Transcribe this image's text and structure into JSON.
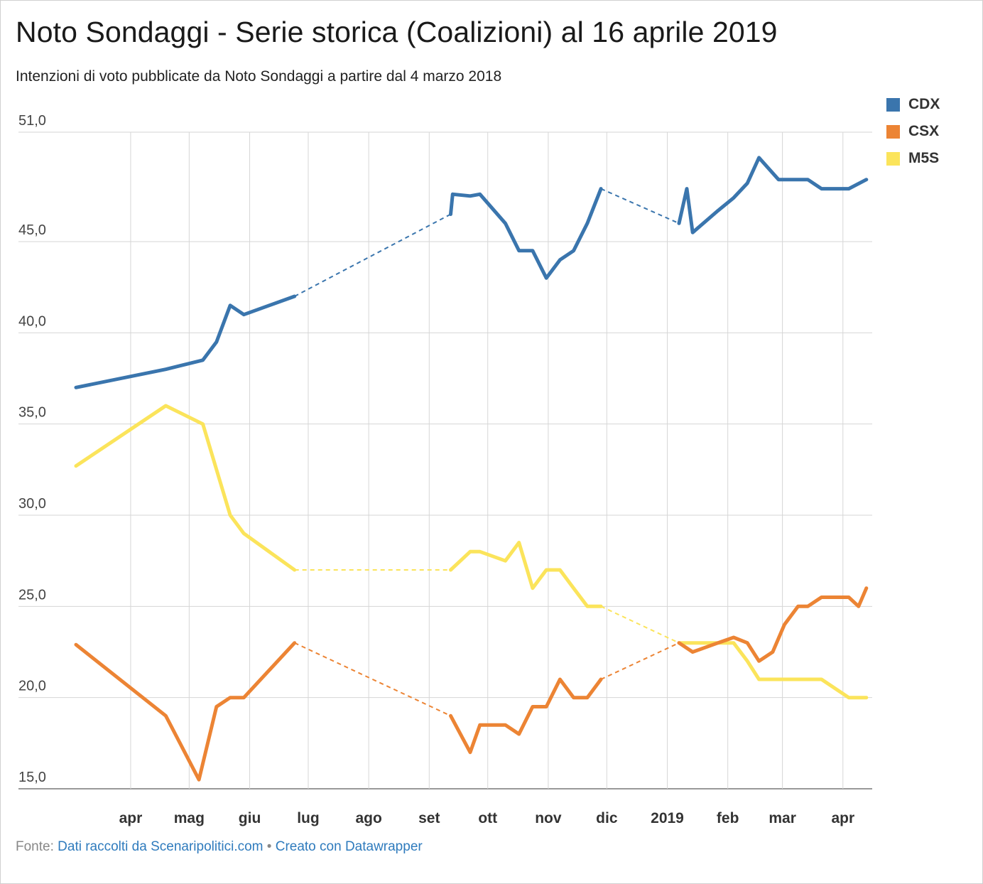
{
  "title": "Noto Sondaggi - Serie storica (Coalizioni) al 16 aprile 2019",
  "subtitle": "Intenzioni di voto pubblicate da Noto Sondaggi a partire dal 4 marzo 2018",
  "footer": {
    "source_prefix": "Fonte:",
    "source_link": "Dati raccolti da Scenaripolitici.com",
    "separator": "•",
    "made_with": "Creato con Datawrapper"
  },
  "legend": [
    {
      "name": "CDX",
      "color": "#3a75ad"
    },
    {
      "name": "CSX",
      "color": "#ec8434"
    },
    {
      "name": "M5S",
      "color": "#fbe45b"
    }
  ],
  "chart_data": {
    "type": "line",
    "title": "Noto Sondaggi - Serie storica (Coalizioni) al 16 aprile 2019",
    "xlabel": "",
    "ylabel": "",
    "ylim": [
      15,
      51
    ],
    "xlim": [
      "2018-03-04",
      "2019-04-16"
    ],
    "y_ticks": [
      {
        "value": 51,
        "label": "51,0"
      },
      {
        "value": 45,
        "label": "45,0"
      },
      {
        "value": 40,
        "label": "40,0"
      },
      {
        "value": 35,
        "label": "35,0"
      },
      {
        "value": 30,
        "label": "30,0"
      },
      {
        "value": 25,
        "label": "25,0"
      },
      {
        "value": 20,
        "label": "20,0"
      },
      {
        "value": 15,
        "label": "15,0"
      }
    ],
    "x_ticks": [
      {
        "date": "2018-04-01",
        "label": "apr"
      },
      {
        "date": "2018-05-01",
        "label": "mag"
      },
      {
        "date": "2018-06-01",
        "label": "giu"
      },
      {
        "date": "2018-07-01",
        "label": "lug"
      },
      {
        "date": "2018-08-01",
        "label": "ago"
      },
      {
        "date": "2018-09-01",
        "label": "set"
      },
      {
        "date": "2018-10-01",
        "label": "ott"
      },
      {
        "date": "2018-11-01",
        "label": "nov"
      },
      {
        "date": "2018-12-01",
        "label": "dic"
      },
      {
        "date": "2019-01-01",
        "label": "2019"
      },
      {
        "date": "2019-02-01",
        "label": "feb"
      },
      {
        "date": "2019-03-01",
        "label": "mar"
      },
      {
        "date": "2019-04-01",
        "label": "apr"
      }
    ],
    "grid": true,
    "legend_position": "top-right",
    "series": [
      {
        "name": "CDX",
        "color": "#3a75ad",
        "segments": [
          [
            [
              "2018-03-04",
              37
            ],
            [
              "2018-04-19",
              38
            ],
            [
              "2018-05-08",
              38.5
            ],
            [
              "2018-05-15",
              39.5
            ],
            [
              "2018-05-22",
              41.5
            ],
            [
              "2018-05-29",
              41
            ],
            [
              "2018-06-24",
              42
            ]
          ],
          [
            [
              "2018-09-12",
              46.5
            ],
            [
              "2018-09-13",
              47.6
            ],
            [
              "2018-09-22",
              47.5
            ],
            [
              "2018-09-27",
              47.6
            ],
            [
              "2018-10-10",
              46
            ],
            [
              "2018-10-17",
              44.5
            ],
            [
              "2018-10-24",
              44.5
            ],
            [
              "2018-10-31",
              43
            ],
            [
              "2018-11-07",
              44
            ],
            [
              "2018-11-14",
              44.5
            ],
            [
              "2018-11-21",
              46
            ],
            [
              "2018-11-28",
              47.9
            ]
          ],
          [
            [
              "2019-01-07",
              46
            ],
            [
              "2019-01-11",
              47.9
            ],
            [
              "2019-01-14",
              45.5
            ],
            [
              "2019-01-27",
              46.7
            ],
            [
              "2019-02-04",
              47.4
            ],
            [
              "2019-02-11",
              48.2
            ],
            [
              "2019-02-17",
              49.6
            ],
            [
              "2019-02-27",
              48.4
            ],
            [
              "2019-03-06",
              48.4
            ],
            [
              "2019-03-14",
              48.4
            ],
            [
              "2019-03-21",
              47.9
            ],
            [
              "2019-04-04",
              47.9
            ],
            [
              "2019-04-13",
              48.4
            ]
          ]
        ],
        "gaps": [
          [
            [
              "2018-06-24",
              42
            ],
            [
              "2018-09-12",
              46.5
            ]
          ],
          [
            [
              "2018-11-28",
              47.9
            ],
            [
              "2019-01-07",
              46
            ]
          ]
        ]
      },
      {
        "name": "CSX",
        "color": "#ec8434",
        "segments": [
          [
            [
              "2018-03-04",
              22.9
            ],
            [
              "2018-04-19",
              19
            ],
            [
              "2018-05-06",
              15.5
            ],
            [
              "2018-05-15",
              19.5
            ],
            [
              "2018-05-22",
              20
            ],
            [
              "2018-05-29",
              20
            ],
            [
              "2018-06-24",
              23
            ]
          ],
          [
            [
              "2018-09-12",
              19
            ],
            [
              "2018-09-22",
              17
            ],
            [
              "2018-09-27",
              18.5
            ],
            [
              "2018-10-10",
              18.5
            ],
            [
              "2018-10-17",
              18
            ],
            [
              "2018-10-24",
              19.5
            ],
            [
              "2018-10-31",
              19.5
            ],
            [
              "2018-11-07",
              21
            ],
            [
              "2018-11-14",
              20
            ],
            [
              "2018-11-21",
              20
            ],
            [
              "2018-11-28",
              21
            ]
          ],
          [
            [
              "2019-01-07",
              23
            ],
            [
              "2019-01-14",
              22.5
            ],
            [
              "2019-01-27",
              23
            ],
            [
              "2019-02-04",
              23.3
            ],
            [
              "2019-02-11",
              23
            ],
            [
              "2019-02-17",
              22
            ],
            [
              "2019-02-24",
              22.5
            ],
            [
              "2019-03-02",
              24
            ],
            [
              "2019-03-09",
              25
            ],
            [
              "2019-03-14",
              25
            ],
            [
              "2019-03-21",
              25.5
            ],
            [
              "2019-04-04",
              25.5
            ],
            [
              "2019-04-09",
              25
            ],
            [
              "2019-04-13",
              26
            ]
          ]
        ],
        "gaps": [
          [
            [
              "2018-06-24",
              23
            ],
            [
              "2018-09-12",
              19
            ]
          ],
          [
            [
              "2018-11-28",
              21
            ],
            [
              "2019-01-07",
              23
            ]
          ]
        ]
      },
      {
        "name": "M5S",
        "color": "#fbe45b",
        "segments": [
          [
            [
              "2018-03-04",
              32.7
            ],
            [
              "2018-04-19",
              36
            ],
            [
              "2018-05-08",
              35
            ],
            [
              "2018-05-15",
              32.5
            ],
            [
              "2018-05-22",
              30
            ],
            [
              "2018-05-29",
              29
            ],
            [
              "2018-06-24",
              27
            ]
          ],
          [
            [
              "2018-09-12",
              27
            ],
            [
              "2018-09-22",
              28
            ],
            [
              "2018-09-27",
              28
            ],
            [
              "2018-10-10",
              27.5
            ],
            [
              "2018-10-17",
              28.5
            ],
            [
              "2018-10-24",
              26
            ],
            [
              "2018-10-31",
              27
            ],
            [
              "2018-11-07",
              27
            ],
            [
              "2018-11-14",
              26
            ],
            [
              "2018-11-21",
              25
            ],
            [
              "2018-11-28",
              25
            ]
          ],
          [
            [
              "2019-01-07",
              23
            ],
            [
              "2019-01-14",
              23
            ],
            [
              "2019-01-27",
              23
            ],
            [
              "2019-02-04",
              23
            ],
            [
              "2019-02-11",
              22
            ],
            [
              "2019-02-17",
              21
            ],
            [
              "2019-03-06",
              21
            ],
            [
              "2019-03-14",
              21
            ],
            [
              "2019-03-21",
              21
            ],
            [
              "2019-04-04",
              20
            ],
            [
              "2019-04-13",
              20
            ]
          ]
        ],
        "gaps": [
          [
            [
              "2018-06-24",
              27
            ],
            [
              "2018-09-12",
              27
            ]
          ],
          [
            [
              "2018-11-28",
              25
            ],
            [
              "2019-01-07",
              23
            ]
          ]
        ]
      }
    ]
  }
}
